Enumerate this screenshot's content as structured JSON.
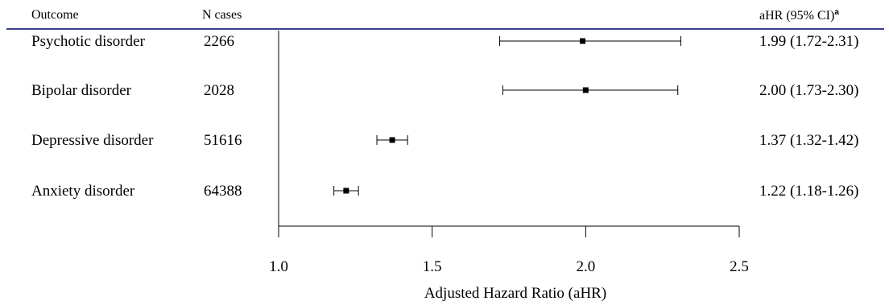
{
  "header": {
    "col_outcome": "Outcome",
    "col_n": "N cases",
    "col_hr": "aHR (95% CI)",
    "col_hr_sup": "a"
  },
  "rows": [
    {
      "outcome": "Psychotic disorder",
      "n": "2266",
      "hr_text": "1.99 (1.72-2.31)"
    },
    {
      "outcome": "Bipolar disorder",
      "n": "2028",
      "hr_text": "2.00 (1.73-2.30)"
    },
    {
      "outcome": "Depressive disorder",
      "n": "51616",
      "hr_text": "1.37 (1.32-1.42)"
    },
    {
      "outcome": "Anxiety disorder",
      "n": "64388",
      "hr_text": "1.22 (1.18-1.26)"
    }
  ],
  "chart_data": {
    "type": "forest",
    "categories": [
      "Psychotic disorder",
      "Bipolar disorder",
      "Depressive disorder",
      "Anxiety disorder"
    ],
    "estimates": [
      1.99,
      2.0,
      1.37,
      1.22
    ],
    "ci_lower": [
      1.72,
      1.73,
      1.32,
      1.18
    ],
    "ci_upper": [
      2.31,
      2.3,
      1.42,
      1.26
    ],
    "reference_line": 1.0,
    "xlim": [
      1.0,
      2.5
    ],
    "xticks": [
      1.0,
      1.5,
      2.0,
      2.5
    ],
    "xtick_labels": [
      "1.0",
      "1.5",
      "2.0",
      "2.5"
    ],
    "xlabel": "Adjusted Hazard Ratio (aHR)",
    "ylabel": "",
    "title": ""
  }
}
